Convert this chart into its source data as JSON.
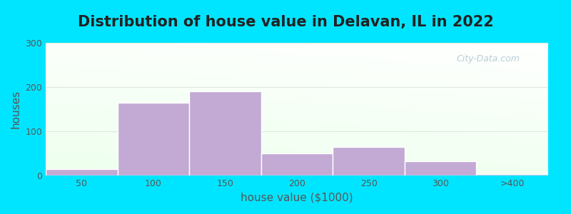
{
  "title": "Distribution of house value in Delavan, IL in 2022",
  "xlabel": "house value ($1000)",
  "ylabel": "houses",
  "bar_values": [
    15,
    165,
    190,
    50,
    65,
    33,
    3
  ],
  "bar_labels": [
    "50",
    "100",
    "150",
    "200",
    "250",
    "300",
    ">400"
  ],
  "bar_color": "#c2aad4",
  "bar_edgecolor": "#ffffff",
  "ylim": [
    0,
    300
  ],
  "yticks": [
    0,
    100,
    200,
    300
  ],
  "background_outer": "#00e5ff",
  "title_fontsize": 15,
  "axis_label_fontsize": 11,
  "watermark_text": "City-Data.com",
  "watermark_color": "#b0c8d0",
  "tick_color": "#555555",
  "grid_color": "#e0e8e0"
}
